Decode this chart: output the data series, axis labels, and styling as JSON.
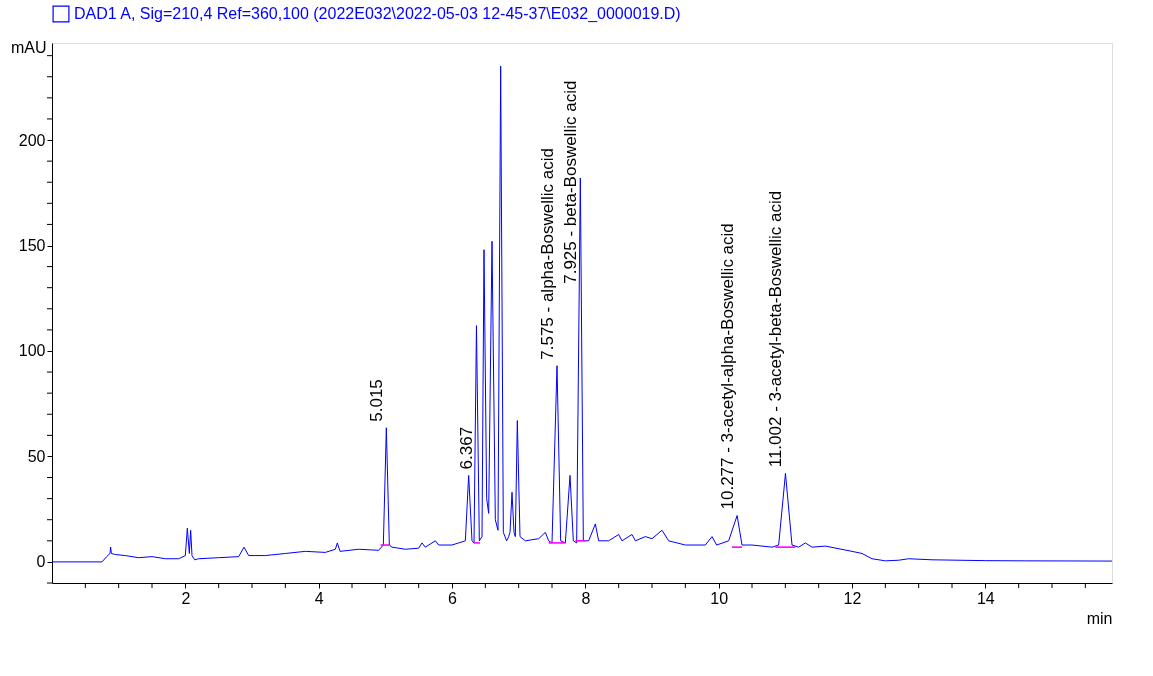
{
  "chart_data": {
    "type": "line",
    "xlabel": "min",
    "ylabel": "mAU",
    "xlim": [
      0,
      15.9
    ],
    "ylim": [
      -10,
      246
    ],
    "xticks": [
      {
        "value": 0.5,
        "label": null
      },
      {
        "value": 1,
        "label": null
      },
      {
        "value": 1.5,
        "label": null
      },
      2,
      {
        "value": 2.5,
        "label": null
      },
      {
        "value": 3,
        "label": null
      },
      {
        "value": 3.5,
        "label": null
      },
      4,
      {
        "value": 4.5,
        "label": null
      },
      {
        "value": 5,
        "label": null
      },
      {
        "value": 5.5,
        "label": null
      },
      6,
      {
        "value": 6.5,
        "label": null
      },
      {
        "value": 7,
        "label": null
      },
      {
        "value": 7.5,
        "label": null
      },
      8,
      {
        "value": 8.5,
        "label": null
      },
      {
        "value": 9,
        "label": null
      },
      {
        "value": 9.5,
        "label": null
      },
      10,
      {
        "value": 10.5,
        "label": null
      },
      {
        "value": 11,
        "label": null
      },
      {
        "value": 11.5,
        "label": null
      },
      12,
      {
        "value": 12.5,
        "label": null
      },
      {
        "value": 13,
        "label": null
      },
      {
        "value": 13.5,
        "label": null
      },
      14,
      {
        "value": 14.5,
        "label": null
      },
      {
        "value": 15,
        "label": null
      },
      {
        "value": 15.5,
        "label": null
      }
    ],
    "yticks": [
      {
        "value": -10,
        "label": null
      },
      0,
      {
        "value": 10,
        "label": null
      },
      {
        "value": 20,
        "label": null
      },
      {
        "value": 30,
        "label": null
      },
      {
        "value": 40,
        "label": null
      },
      50,
      {
        "value": 60,
        "label": null
      },
      {
        "value": 70,
        "label": null
      },
      {
        "value": 80,
        "label": null
      },
      {
        "value": 90,
        "label": null
      },
      100,
      {
        "value": 110,
        "label": null
      },
      {
        "value": 120,
        "label": null
      },
      {
        "value": 130,
        "label": null
      },
      {
        "value": 140,
        "label": null
      },
      150,
      {
        "value": 160,
        "label": null
      },
      {
        "value": 170,
        "label": null
      },
      {
        "value": 180,
        "label": null
      },
      {
        "value": 190,
        "label": null
      },
      200,
      {
        "value": 210,
        "label": null
      },
      {
        "value": 220,
        "label": null
      },
      {
        "value": 230,
        "label": null
      },
      {
        "value": 240,
        "label": null
      }
    ],
    "grid": false,
    "legend": "top left",
    "marker": "none",
    "line_style": "solid",
    "series": [
      {
        "name": "DAD1 A, Sig=210,4 Ref=360,100 (2022E032\\2022-05-03 12-45-37\\E032_0000019.D)",
        "color": "#0000ff",
        "x": [
          0,
          0.75,
          0.82,
          0.87,
          0.88,
          0.89,
          0.95,
          1.1,
          1.3,
          1.5,
          1.7,
          1.9,
          2.0,
          2.03,
          2.06,
          2.08,
          2.1,
          2.14,
          2.2,
          2.5,
          2.8,
          2.88,
          2.95,
          3.2,
          3.5,
          3.8,
          4.1,
          4.25,
          4.28,
          4.32,
          4.6,
          4.9,
          4.97,
          5.015,
          5.06,
          5.1,
          5.3,
          5.5,
          5.55,
          5.6,
          5.75,
          5.8,
          6.0,
          6.2,
          6.25,
          6.3,
          6.33,
          6.367,
          6.41,
          6.45,
          6.48,
          6.52,
          6.55,
          6.6,
          6.65,
          6.69,
          6.73,
          6.77,
          6.82,
          6.85,
          6.87,
          6.9,
          6.93,
          6.95,
          6.98,
          7.02,
          7.1,
          7.3,
          7.4,
          7.45,
          7.5,
          7.575,
          7.63,
          7.7,
          7.77,
          7.82,
          7.87,
          7.925,
          7.97,
          8.05,
          8.15,
          8.2,
          8.35,
          8.5,
          8.55,
          8.7,
          8.75,
          8.9,
          9.0,
          9.15,
          9.25,
          9.5,
          9.8,
          9.9,
          9.97,
          10.15,
          10.277,
          10.35,
          10.5,
          10.8,
          10.9,
          11.002,
          11.1,
          11.2,
          11.3,
          11.4,
          11.6,
          12.0,
          12.15,
          12.3,
          12.5,
          12.7,
          12.85,
          13.2,
          14.0,
          14.6,
          15.9
        ],
        "values": [
          0,
          0,
          2.5,
          4,
          7,
          4,
          3.5,
          3,
          2,
          2.5,
          1.5,
          1.5,
          3,
          16,
          4,
          15,
          3,
          1,
          1.5,
          2,
          2.5,
          7,
          3,
          3,
          4,
          5,
          4.5,
          6,
          9,
          5,
          6,
          5.5,
          8,
          63.6,
          8,
          7,
          6,
          6.5,
          9,
          7,
          10,
          8,
          8,
          10,
          41,
          10,
          9,
          112,
          10,
          12,
          148,
          30,
          23,
          152,
          20,
          15,
          235,
          14,
          10,
          12,
          14,
          33,
          14,
          12,
          67,
          12,
          10,
          11,
          14,
          10,
          9,
          93,
          10,
          9,
          41,
          10,
          9,
          182,
          10,
          10,
          18,
          10,
          10,
          13,
          10,
          13,
          10,
          12,
          11,
          15,
          10,
          8,
          8,
          12,
          8,
          10,
          22,
          8,
          8,
          7,
          8,
          42,
          8,
          7,
          9,
          7,
          7.5,
          5,
          4,
          1.5,
          0.5,
          0.8,
          1.5,
          1,
          0.6,
          0.5,
          0.4
        ]
      },
      {
        "color": "#ff00ff",
        "x": [
          4.93,
          5.06
        ],
        "values": [
          8,
          8
        ]
      },
      {
        "color": "#ff00ff",
        "x": [
          6.33,
          6.42
        ],
        "values": [
          9,
          9
        ]
      },
      {
        "color": "#ff00ff",
        "x": [
          7.45,
          7.7
        ],
        "values": [
          9,
          9
        ]
      },
      {
        "color": "#ff00ff",
        "x": [
          7.85,
          8.0
        ],
        "values": [
          10,
          10
        ]
      },
      {
        "color": "#ff00ff",
        "x": [
          10.2,
          10.35
        ],
        "values": [
          7,
          7
        ]
      },
      {
        "color": "#ff00ff",
        "x": [
          10.85,
          11.15
        ],
        "values": [
          7,
          7
        ]
      }
    ],
    "annotations": [
      {
        "text": "5.015",
        "x": 5.015,
        "y": 63.6
      },
      {
        "text": "6.367",
        "x": 6.367,
        "y": 41
      },
      {
        "text": "7.575 -  alpha-Boswellic acid",
        "x": 7.575,
        "y": 93
      },
      {
        "text": "7.925 -  beta-Boswellic acid",
        "x": 7.925,
        "y": 182
      },
      {
        "text": "10.277 -  3-acetyl-alpha-Boswellic acid",
        "x": 10.277,
        "y": 22
      },
      {
        "text": "11.002 -  3-acetyl-beta-Boswellic acid",
        "x": 11.002,
        "y": 42
      }
    ]
  }
}
